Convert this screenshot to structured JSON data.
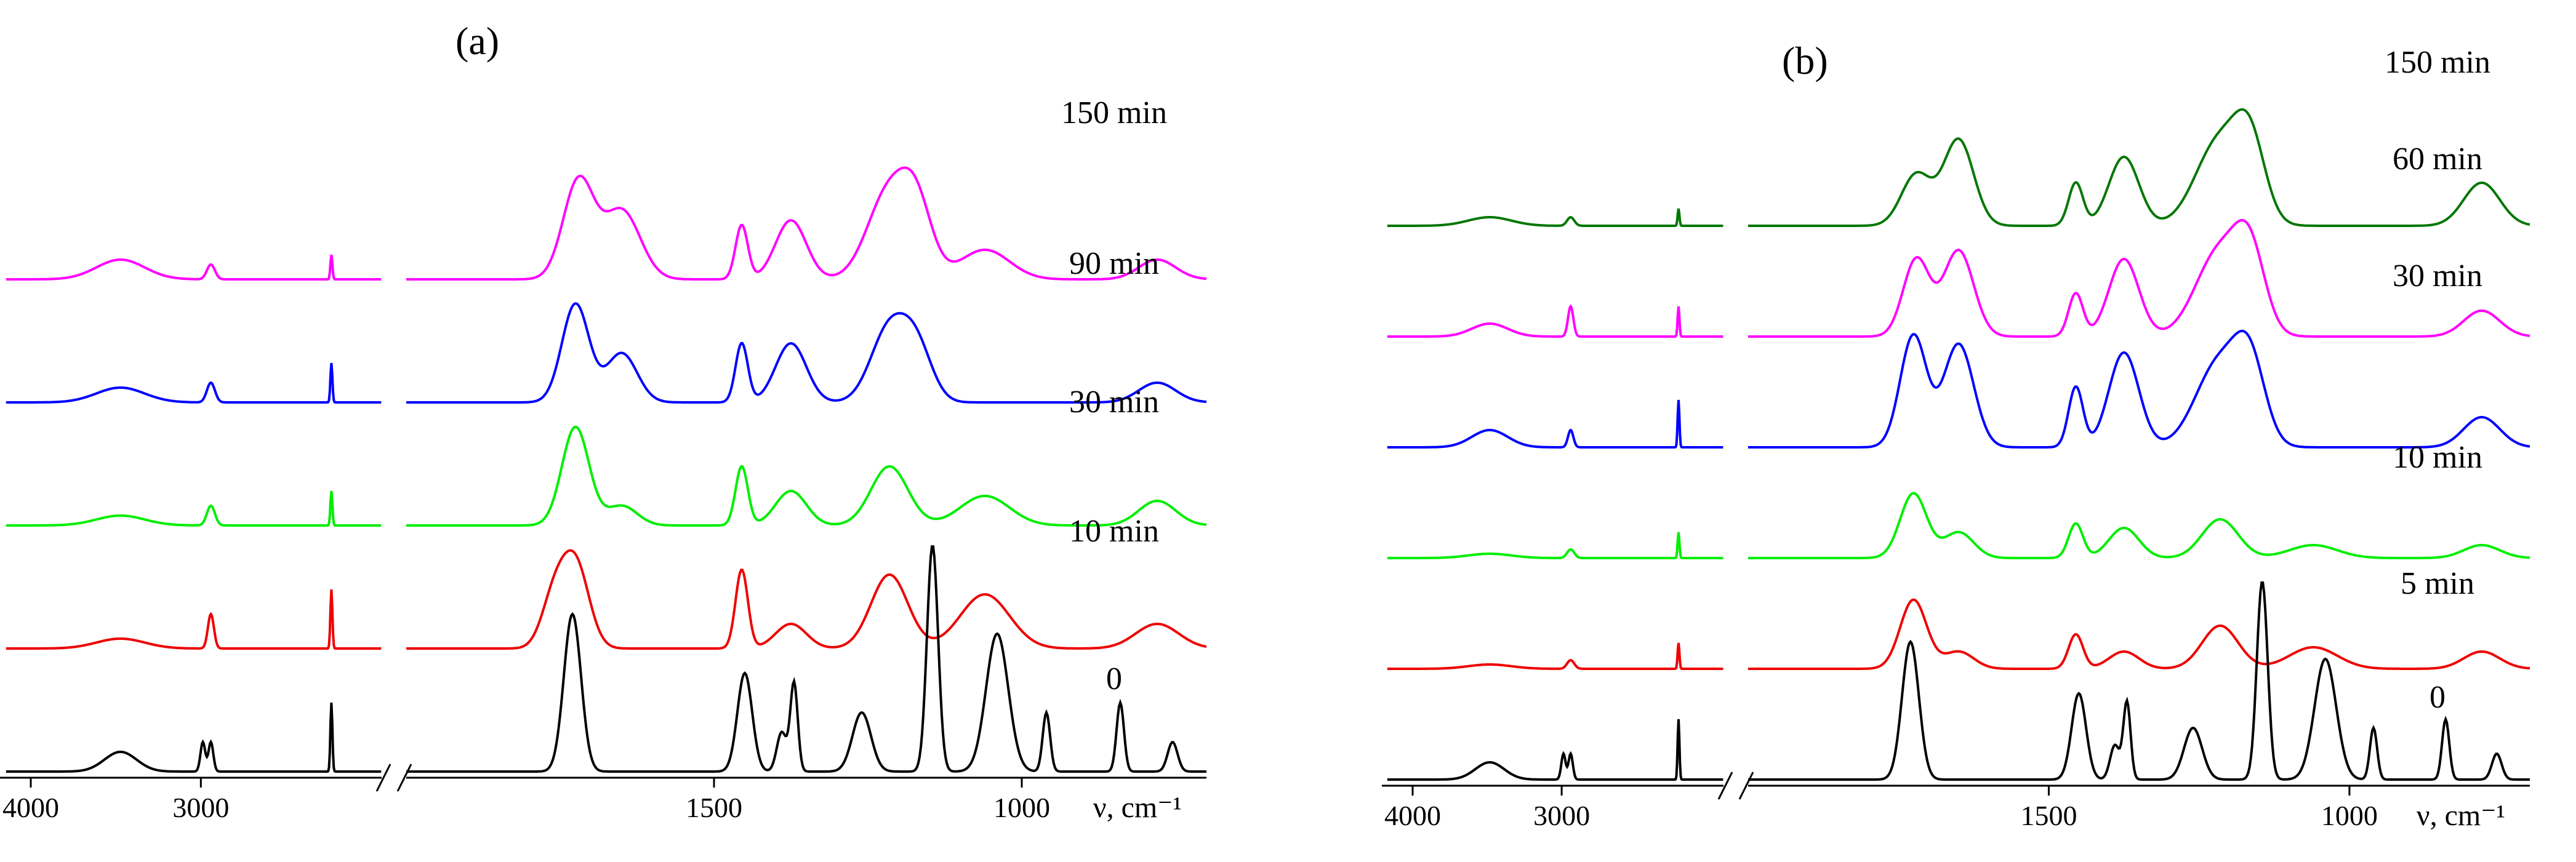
{
  "chart_data": [
    {
      "type": "line",
      "panel_label": "(a)",
      "xlabel": "ν, cm⁻¹",
      "x_axis_segments": [
        {
          "x_range": [
            4000,
            2100
          ],
          "ticks": [
            {
              "value": 4000,
              "label": "4000"
            },
            {
              "value": 3000,
              "label": "3000"
            }
          ]
        },
        {
          "x_range": [
            2000,
            700
          ],
          "ticks": [
            {
              "value": 1500,
              "label": "1500"
            },
            {
              "value": 1000,
              "label": "1000"
            }
          ]
        }
      ],
      "y_ticks": "none",
      "series": [
        {
          "name": "150 min",
          "color": "#ff00ff",
          "offset": 4,
          "amp": 1.0,
          "peaks": [
            [
              1720,
              1.0,
              25
            ],
            [
              1650,
              0.7,
              30
            ],
            [
              1455,
              0.55,
              10
            ],
            [
              1375,
              0.6,
              25
            ],
            [
              1215,
              0.9,
              35
            ],
            [
              1170,
              0.6,
              25
            ],
            [
              1060,
              0.3,
              40
            ],
            [
              780,
              0.2,
              30
            ]
          ],
          "hf_peaks": [
            [
              3400,
              0.2,
              120
            ],
            [
              2950,
              0.15,
              20
            ],
            [
              2350,
              0.25,
              5
            ]
          ]
        },
        {
          "name": "90 min",
          "color": "#0000ff",
          "offset": 3,
          "amp": 1.0,
          "peaks": [
            [
              1725,
              1.0,
              22
            ],
            [
              1650,
              0.5,
              25
            ],
            [
              1455,
              0.6,
              10
            ],
            [
              1375,
              0.6,
              25
            ],
            [
              1215,
              0.75,
              30
            ],
            [
              1170,
              0.5,
              25
            ],
            [
              780,
              0.2,
              30
            ]
          ],
          "hf_peaks": [
            [
              3400,
              0.15,
              120
            ],
            [
              2950,
              0.2,
              20
            ],
            [
              2350,
              0.4,
              5
            ]
          ]
        },
        {
          "name": "30 min",
          "color": "#00ee00",
          "offset": 2,
          "amp": 1.0,
          "peaks": [
            [
              1725,
              1.0,
              22
            ],
            [
              1650,
              0.2,
              25
            ],
            [
              1455,
              0.6,
              10
            ],
            [
              1375,
              0.35,
              25
            ],
            [
              1215,
              0.6,
              30
            ],
            [
              1060,
              0.3,
              40
            ],
            [
              780,
              0.25,
              30
            ]
          ],
          "hf_peaks": [
            [
              3400,
              0.1,
              120
            ],
            [
              2950,
              0.2,
              20
            ],
            [
              2350,
              0.35,
              5
            ]
          ]
        },
        {
          "name": "10 min",
          "color": "#ee0000",
          "offset": 1,
          "amp": 1.0,
          "peaks": [
            [
              1725,
              0.85,
              22
            ],
            [
              1760,
              0.5,
              20
            ],
            [
              1455,
              0.8,
              10
            ],
            [
              1375,
              0.25,
              25
            ],
            [
              1215,
              0.75,
              30
            ],
            [
              1060,
              0.55,
              40
            ],
            [
              780,
              0.25,
              35
            ]
          ],
          "hf_peaks": [
            [
              3400,
              0.1,
              120
            ],
            [
              2950,
              0.35,
              15
            ],
            [
              2350,
              0.6,
              5
            ]
          ]
        },
        {
          "name": "0",
          "color": "#000000",
          "offset": 0,
          "amp": 1.0,
          "peaks": [
            [
              1730,
              1.6,
              14
            ],
            [
              1450,
              1.0,
              12
            ],
            [
              1390,
              0.4,
              8
            ],
            [
              1370,
              0.9,
              6
            ],
            [
              1260,
              0.6,
              15
            ],
            [
              1145,
              2.3,
              9
            ],
            [
              1040,
              1.4,
              18
            ],
            [
              960,
              0.6,
              6
            ],
            [
              840,
              0.7,
              6
            ],
            [
              755,
              0.3,
              8
            ]
          ],
          "hf_peaks": [
            [
              3400,
              0.2,
              80
            ],
            [
              2990,
              0.3,
              12
            ],
            [
              2950,
              0.3,
              12
            ],
            [
              2350,
              0.7,
              5
            ]
          ]
        }
      ]
    },
    {
      "type": "line",
      "panel_label": "(b)",
      "xlabel": "ν, cm⁻¹",
      "x_axis_segments": [
        {
          "x_range": [
            4000,
            2100
          ],
          "ticks": [
            {
              "value": 4000,
              "label": "4000"
            },
            {
              "value": 3000,
              "label": "3000"
            }
          ]
        },
        {
          "x_range": [
            2000,
            700
          ],
          "ticks": [
            {
              "value": 1500,
              "label": "1500"
            },
            {
              "value": 1000,
              "label": "1000"
            }
          ]
        }
      ],
      "y_ticks": "none",
      "series": [
        {
          "name": "150 min",
          "color": "#007700",
          "offset": 5,
          "amp": 1.0,
          "peaks": [
            [
              1720,
              0.6,
              25
            ],
            [
              1650,
              1.0,
              25
            ],
            [
              1455,
              0.5,
              12
            ],
            [
              1375,
              0.8,
              25
            ],
            [
              1215,
              1.0,
              40
            ],
            [
              1165,
              0.8,
              25
            ],
            [
              780,
              0.5,
              30
            ]
          ],
          "hf_peaks": [
            [
              3400,
              0.1,
              120
            ],
            [
              2950,
              0.1,
              20
            ],
            [
              2350,
              0.2,
              5
            ]
          ]
        },
        {
          "name": "60 min",
          "color": "#ff00ff",
          "offset": 4,
          "amp": 1.0,
          "peaks": [
            [
              1720,
              0.9,
              22
            ],
            [
              1650,
              1.0,
              25
            ],
            [
              1455,
              0.5,
              12
            ],
            [
              1375,
              0.9,
              25
            ],
            [
              1215,
              1.0,
              40
            ],
            [
              1165,
              0.8,
              25
            ],
            [
              780,
              0.3,
              30
            ]
          ],
          "hf_peaks": [
            [
              3400,
              0.15,
              100
            ],
            [
              2950,
              0.35,
              15
            ],
            [
              2350,
              0.35,
              5
            ]
          ]
        },
        {
          "name": "30 min",
          "color": "#0000ff",
          "offset": 3,
          "amp": 1.0,
          "peaks": [
            [
              1725,
              1.3,
              22
            ],
            [
              1650,
              1.2,
              25
            ],
            [
              1455,
              0.7,
              12
            ],
            [
              1375,
              1.1,
              25
            ],
            [
              1215,
              1.0,
              40
            ],
            [
              1165,
              0.8,
              25
            ],
            [
              780,
              0.35,
              30
            ]
          ],
          "hf_peaks": [
            [
              3400,
              0.2,
              100
            ],
            [
              2950,
              0.2,
              15
            ],
            [
              2350,
              0.55,
              5
            ]
          ]
        },
        {
          "name": "10 min",
          "color": "#00ee00",
          "offset": 2,
          "amp": 1.0,
          "peaks": [
            [
              1725,
              0.75,
              22
            ],
            [
              1650,
              0.3,
              25
            ],
            [
              1455,
              0.4,
              12
            ],
            [
              1375,
              0.35,
              25
            ],
            [
              1215,
              0.45,
              30
            ],
            [
              1060,
              0.15,
              40
            ],
            [
              780,
              0.15,
              30
            ]
          ],
          "hf_peaks": [
            [
              3400,
              0.05,
              120
            ],
            [
              2950,
              0.1,
              20
            ],
            [
              2350,
              0.3,
              5
            ]
          ]
        },
        {
          "name": "5 min",
          "color": "#ee0000",
          "offset": 1,
          "amp": 1.0,
          "peaks": [
            [
              1725,
              0.8,
              22
            ],
            [
              1650,
              0.2,
              25
            ],
            [
              1455,
              0.4,
              12
            ],
            [
              1375,
              0.2,
              25
            ],
            [
              1215,
              0.5,
              30
            ],
            [
              1060,
              0.25,
              40
            ],
            [
              780,
              0.2,
              30
            ]
          ],
          "hf_peaks": [
            [
              3400,
              0.05,
              120
            ],
            [
              2950,
              0.1,
              20
            ],
            [
              2350,
              0.3,
              5
            ]
          ]
        },
        {
          "name": "0",
          "color": "#000000",
          "offset": 0,
          "amp": 1.0,
          "peaks": [
            [
              1730,
              1.6,
              14
            ],
            [
              1450,
              1.0,
              12
            ],
            [
              1390,
              0.4,
              8
            ],
            [
              1370,
              0.9,
              6
            ],
            [
              1260,
              0.6,
              15
            ],
            [
              1145,
              2.3,
              9
            ],
            [
              1040,
              1.4,
              18
            ],
            [
              960,
              0.6,
              6
            ],
            [
              840,
              0.7,
              6
            ],
            [
              755,
              0.3,
              8
            ]
          ],
          "hf_peaks": [
            [
              3400,
              0.2,
              80
            ],
            [
              2990,
              0.3,
              12
            ],
            [
              2950,
              0.3,
              12
            ],
            [
              2350,
              0.7,
              5
            ]
          ]
        }
      ]
    }
  ]
}
